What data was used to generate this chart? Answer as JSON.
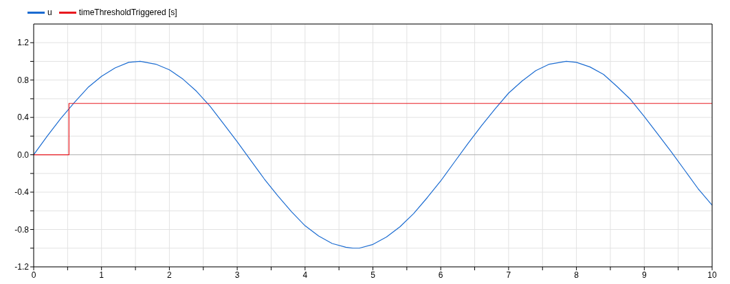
{
  "chart_data": {
    "type": "line",
    "series": [
      {
        "name": "u",
        "color": "#1a6bd1",
        "x": [
          0,
          0.2,
          0.4,
          0.6,
          0.8,
          1,
          1.2,
          1.4,
          1.57,
          1.8,
          2,
          2.2,
          2.4,
          2.6,
          2.8,
          3,
          3.2,
          3.4,
          3.6,
          3.8,
          4,
          4.2,
          4.4,
          4.6,
          4.71,
          4.8,
          5,
          5.2,
          5.4,
          5.6,
          5.8,
          6,
          6.2,
          6.4,
          6.6,
          6.8,
          7,
          7.2,
          7.4,
          7.6,
          7.85,
          8,
          8.2,
          8.4,
          8.6,
          8.8,
          9,
          9.2,
          9.4,
          9.6,
          9.8,
          10
        ],
        "values": [
          0,
          0.2,
          0.39,
          0.56,
          0.72,
          0.84,
          0.93,
          0.99,
          1.0,
          0.97,
          0.91,
          0.81,
          0.68,
          0.52,
          0.33,
          0.14,
          -0.06,
          -0.26,
          -0.44,
          -0.61,
          -0.76,
          -0.87,
          -0.95,
          -0.99,
          -1.0,
          -1.0,
          -0.96,
          -0.88,
          -0.77,
          -0.63,
          -0.46,
          -0.28,
          -0.08,
          0.12,
          0.31,
          0.49,
          0.66,
          0.79,
          0.9,
          0.97,
          1.0,
          0.99,
          0.94,
          0.86,
          0.73,
          0.59,
          0.41,
          0.22,
          0.03,
          -0.17,
          -0.37,
          -0.54
        ]
      },
      {
        "name": "timeThresholdTriggered [s]",
        "color": "#e8181f",
        "type": "step",
        "x": [
          0,
          0.52,
          10
        ],
        "values": [
          0,
          0.55,
          0.55
        ]
      }
    ],
    "xlim": [
      0,
      10
    ],
    "xticks": [
      0,
      {
        "value": 0.5,
        "label": null
      },
      1,
      {
        "value": 1.5,
        "label": null
      },
      2,
      {
        "value": 2.5,
        "label": null
      },
      3,
      {
        "value": 3.5,
        "label": null
      },
      4,
      {
        "value": 4.5,
        "label": null
      },
      5,
      {
        "value": 5.5,
        "label": null
      },
      6,
      {
        "value": 6.5,
        "label": null
      },
      7,
      {
        "value": 7.5,
        "label": null
      },
      8,
      {
        "value": 8.5,
        "label": null
      },
      9,
      {
        "value": 9.5,
        "label": null
      },
      10
    ],
    "ylim": [
      -1.2,
      1.4
    ],
    "yticks": [
      -1.2,
      {
        "value": -1.0,
        "label": null
      },
      -0.8,
      {
        "value": -0.6,
        "label": null
      },
      -0.4,
      {
        "value": -0.2,
        "label": null
      },
      {
        "value": 0,
        "label": "0.0"
      },
      {
        "value": 0.2,
        "label": null
      },
      0.4,
      {
        "value": 0.6,
        "label": null
      },
      0.8,
      {
        "value": 1.0,
        "label": null
      },
      1.2
    ],
    "ref_lines": [
      {
        "axis": "y",
        "value": 0,
        "color": "#b4b4b4"
      }
    ],
    "grid": true,
    "legend": "top left",
    "line_style": "solid"
  }
}
